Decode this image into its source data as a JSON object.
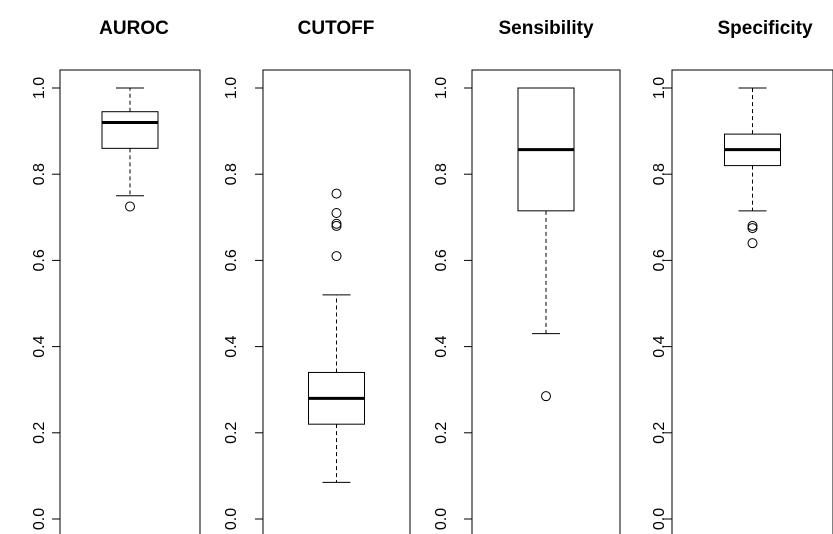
{
  "chart_data": [
    {
      "type": "boxplot",
      "title": "AUROC",
      "ylim": [
        0,
        1.0
      ],
      "y_ticks": [
        "0.0",
        "0.2",
        "0.4",
        "0.6",
        "0.8",
        "1.0"
      ],
      "stats": {
        "whisker_low": 0.75,
        "q1": 0.86,
        "median": 0.92,
        "q3": 0.945,
        "whisker_high": 1.0
      },
      "outliers": [
        0.725
      ]
    },
    {
      "type": "boxplot",
      "title": "CUTOFF",
      "ylim": [
        0,
        1.0
      ],
      "y_ticks": [
        "0.0",
        "0.2",
        "0.4",
        "0.6",
        "0.8",
        "1.0"
      ],
      "stats": {
        "whisker_low": 0.085,
        "q1": 0.22,
        "median": 0.28,
        "q3": 0.34,
        "whisker_high": 0.52
      },
      "outliers": [
        0.61,
        0.68,
        0.685,
        0.71,
        0.755
      ]
    },
    {
      "type": "boxplot",
      "title": "Sensibility",
      "ylim": [
        0,
        1.0
      ],
      "y_ticks": [
        "0.0",
        "0.2",
        "0.4",
        "0.6",
        "0.8",
        "1.0"
      ],
      "stats": {
        "whisker_low": 0.43,
        "q1": 0.715,
        "median": 0.857,
        "q3": 1.0,
        "whisker_high": 1.0
      },
      "outliers": [
        0.285
      ]
    },
    {
      "type": "boxplot",
      "title": "Specificity",
      "ylim": [
        0,
        1.0
      ],
      "y_ticks": [
        "0.0",
        "0.2",
        "0.4",
        "0.6",
        "0.8",
        "1.0"
      ],
      "stats": {
        "whisker_low": 0.715,
        "q1": 0.82,
        "median": 0.857,
        "q3": 0.893,
        "whisker_high": 1.0
      },
      "outliers": [
        0.64,
        0.675,
        0.68
      ]
    }
  ]
}
